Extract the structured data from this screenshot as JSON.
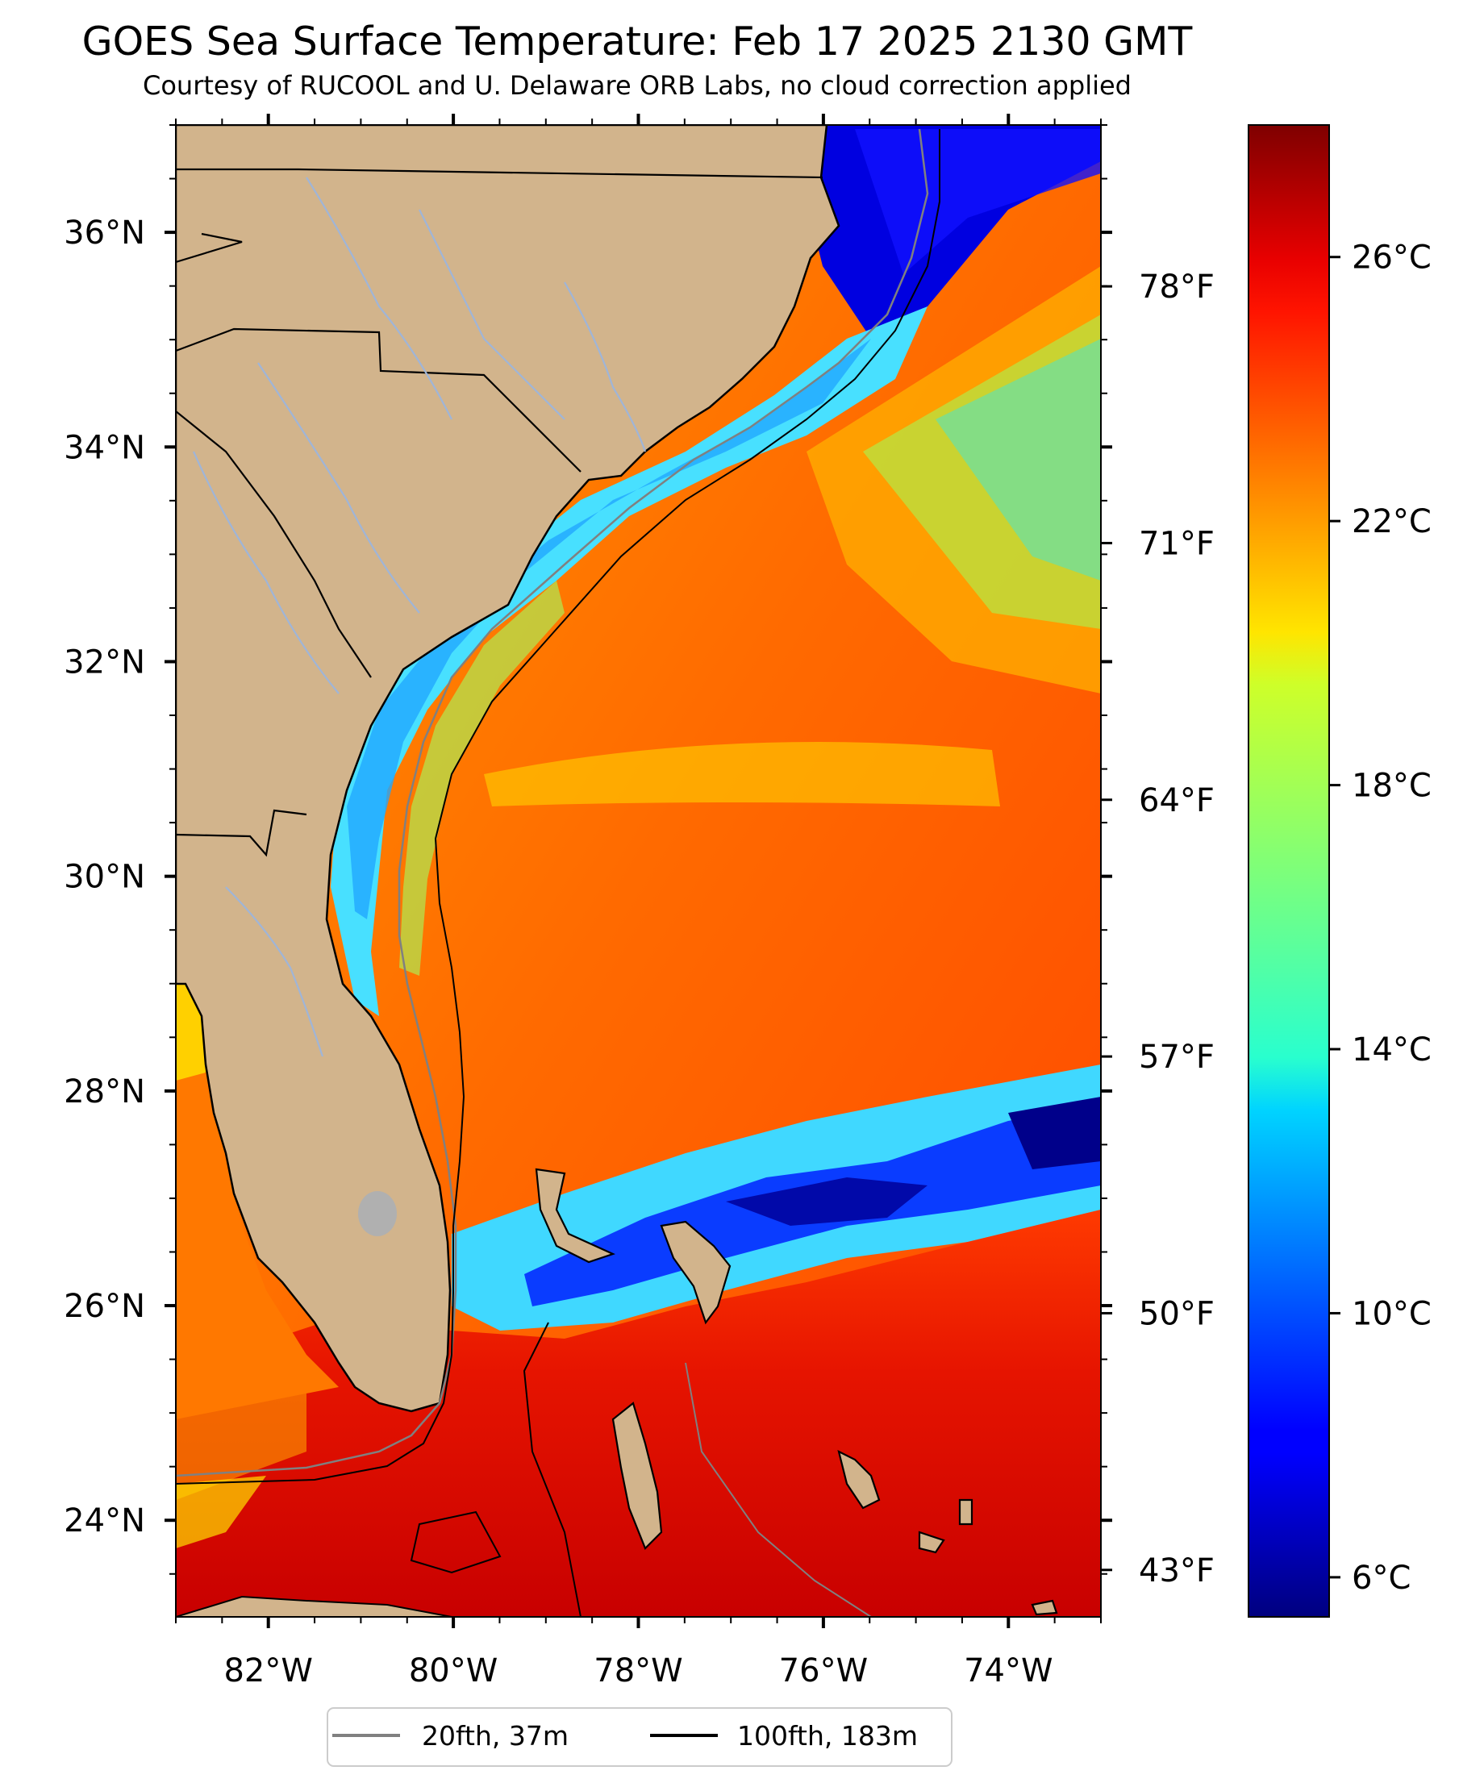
{
  "title": "GOES Sea Surface Temperature: Feb 17 2025 2130 GMT",
  "subtitle": "Courtesy of RUCOOL and U. Delaware ORB Labs, no cloud correction applied",
  "map": {
    "projection": "plate-carree",
    "lon_range": [
      -83,
      -73
    ],
    "lat_range": [
      23.1,
      37
    ],
    "lat_ticks": [
      "36°N",
      "34°N",
      "32°N",
      "30°N",
      "28°N",
      "26°N",
      "24°N"
    ],
    "lon_ticks": [
      "82°W",
      "80°W",
      "78°W",
      "76°W",
      "74°W"
    ],
    "fahrenheit_ticks": [
      "78°F",
      "71°F",
      "64°F",
      "57°F",
      "50°F",
      "43°F"
    ],
    "land_color": "#d2b48c",
    "river_color": "#9fb5d8"
  },
  "colorbar": {
    "colormap": "jet",
    "range_c": [
      5.4,
      28
    ],
    "ticks": [
      "26°C",
      "22°C",
      "18°C",
      "14°C",
      "10°C",
      "6°C"
    ]
  },
  "legend": {
    "items": [
      {
        "label": "20fth, 37m",
        "color": "#808080"
      },
      {
        "label": "100fth, 183m",
        "color": "#000000"
      }
    ]
  }
}
